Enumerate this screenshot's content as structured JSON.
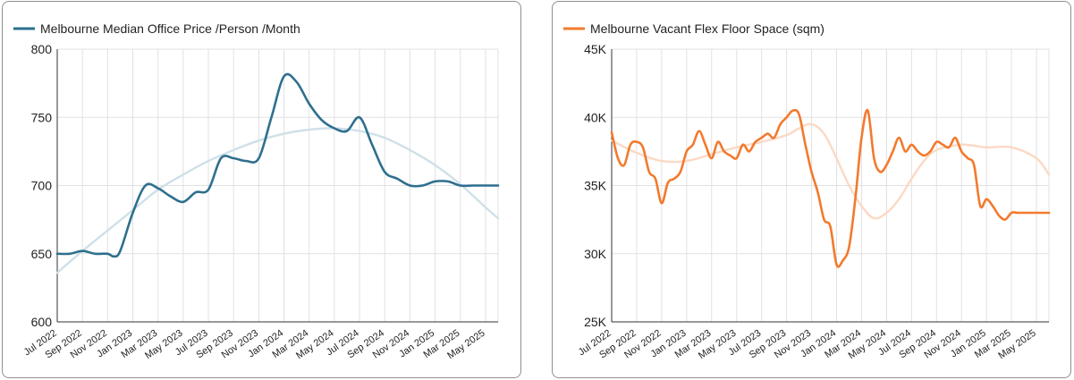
{
  "chart_data": [
    {
      "type": "line",
      "title": "",
      "xlabel": "",
      "ylabel": "",
      "legend_placement": "top-left",
      "grid": true,
      "ylim": [
        600,
        800
      ],
      "yticks": [
        "600",
        "650",
        "700",
        "750",
        "800"
      ],
      "yticks_values": [
        600,
        650,
        700,
        750,
        800
      ],
      "xlim": [
        0,
        35
      ],
      "xticks": [
        "Jul 2022",
        "Sep 2022",
        "Nov 2022",
        "Jan 2023",
        "Mar 2023",
        "May 2023",
        "Jul 2023",
        "Sep 2023",
        "Nov 2023",
        "Jan 2024",
        "Mar 2024",
        "May 2024",
        "Jul 2024",
        "Sep 2024",
        "Nov 2024",
        "Jan 2025",
        "Mar 2025",
        "May 2025"
      ],
      "xticks_values": [
        0,
        2,
        4,
        6,
        8,
        10,
        12,
        14,
        16,
        18,
        20,
        22,
        24,
        26,
        28,
        30,
        32,
        34
      ],
      "series": [
        {
          "name": "Melbourne Median Office Price /Person /Month",
          "color": "#2e6f8e",
          "x": [
            0,
            1,
            2,
            3,
            4,
            4.5,
            5,
            6,
            7,
            8,
            9,
            10,
            11,
            12,
            13,
            14,
            15,
            16,
            17,
            18,
            19,
            20,
            21,
            22,
            23,
            24,
            25,
            26,
            27,
            28,
            29,
            30,
            31,
            32,
            33,
            34,
            35
          ],
          "values": [
            650,
            650,
            652,
            650,
            650,
            648,
            652,
            680,
            700,
            698,
            692,
            688,
            695,
            697,
            720,
            720,
            718,
            720,
            750,
            780,
            776,
            760,
            748,
            742,
            740,
            750,
            730,
            710,
            705,
            700,
            700,
            703,
            703,
            700,
            700,
            700,
            700
          ]
        },
        {
          "name": "",
          "color": "#cfe0e8",
          "x": [
            0,
            2,
            4,
            6,
            8,
            10,
            12,
            14,
            16,
            18,
            20,
            22,
            24,
            26,
            28,
            30,
            32,
            34,
            35
          ],
          "values": [
            636,
            652,
            667,
            682,
            697,
            708,
            718,
            726,
            733,
            738,
            741,
            742,
            740,
            735,
            726,
            715,
            701,
            684,
            676
          ]
        }
      ]
    },
    {
      "type": "line",
      "title": "",
      "xlabel": "",
      "ylabel": "",
      "legend_placement": "top-left",
      "grid": true,
      "ylim": [
        25000,
        45000
      ],
      "yticks": [
        "25K",
        "30K",
        "35K",
        "40K",
        "45K"
      ],
      "yticks_values": [
        25000,
        30000,
        35000,
        40000,
        45000
      ],
      "xlim": [
        0,
        35
      ],
      "xticks": [
        "Jul 2022",
        "Sep 2022",
        "Nov 2022",
        "Jan 2023",
        "Mar 2023",
        "May 2023",
        "Jul 2023",
        "Sep 2023",
        "Nov 2023",
        "Jan 2024",
        "Mar 2024",
        "May 2024",
        "Jul 2024",
        "Sep 2024",
        "Nov 2024",
        "Jan 2025",
        "Mar 2025",
        "May 2025"
      ],
      "xticks_values": [
        0,
        2,
        4,
        6,
        8,
        10,
        12,
        14,
        16,
        18,
        20,
        22,
        24,
        26,
        28,
        30,
        32,
        34
      ],
      "series": [
        {
          "name": "Melbourne Vacant Flex Floor Space (sqm)",
          "color": "#f27a2d",
          "x": [
            0,
            0.5,
            1,
            1.5,
            2,
            2.5,
            3,
            3.5,
            4,
            4.5,
            5,
            5.5,
            6,
            6.5,
            7,
            7.5,
            8,
            8.5,
            9,
            9.5,
            10,
            10.5,
            11,
            11.5,
            12,
            12.5,
            13,
            13.5,
            14,
            14.5,
            15,
            15.5,
            16,
            16.5,
            17,
            17.5,
            18,
            18.5,
            19,
            19.5,
            20,
            20.5,
            21,
            21.5,
            22,
            22.5,
            23,
            23.5,
            24,
            24.5,
            25,
            25.5,
            26,
            26.5,
            27,
            27.5,
            28,
            28.5,
            29,
            29.5,
            30,
            30.5,
            31,
            31.5,
            32,
            32.5,
            33,
            33.5,
            34,
            34.5,
            35
          ],
          "values": [
            38900,
            37000,
            36500,
            38000,
            38200,
            37800,
            36000,
            35500,
            33700,
            35200,
            35500,
            36000,
            37500,
            38000,
            39000,
            38000,
            37000,
            38200,
            37500,
            37200,
            37000,
            38000,
            37500,
            38200,
            38500,
            38800,
            38500,
            39500,
            40000,
            40500,
            40200,
            38000,
            36000,
            34500,
            32500,
            32000,
            29200,
            29500,
            30500,
            34000,
            38500,
            40500,
            37000,
            36000,
            36500,
            37500,
            38500,
            37500,
            38000,
            37500,
            37200,
            37500,
            38200,
            38000,
            37800,
            38500,
            37500,
            37000,
            36500,
            33500,
            34000,
            33500,
            32800,
            32500,
            33000,
            33000,
            33000,
            33000,
            33000,
            33000,
            33000
          ]
        },
        {
          "name": "",
          "color": "#fbd9c4",
          "x": [
            0,
            2,
            4,
            6,
            8,
            10,
            12,
            14,
            15,
            16,
            17,
            18,
            19,
            20,
            21,
            22,
            23,
            24,
            25,
            26,
            28,
            30,
            32,
            34,
            35
          ],
          "values": [
            38300,
            37400,
            36800,
            36800,
            37300,
            37800,
            38200,
            38700,
            39200,
            39500,
            38800,
            37000,
            35000,
            33500,
            32600,
            33000,
            34000,
            35500,
            36800,
            37600,
            38000,
            37800,
            37800,
            37000,
            35800
          ]
        }
      ]
    }
  ]
}
